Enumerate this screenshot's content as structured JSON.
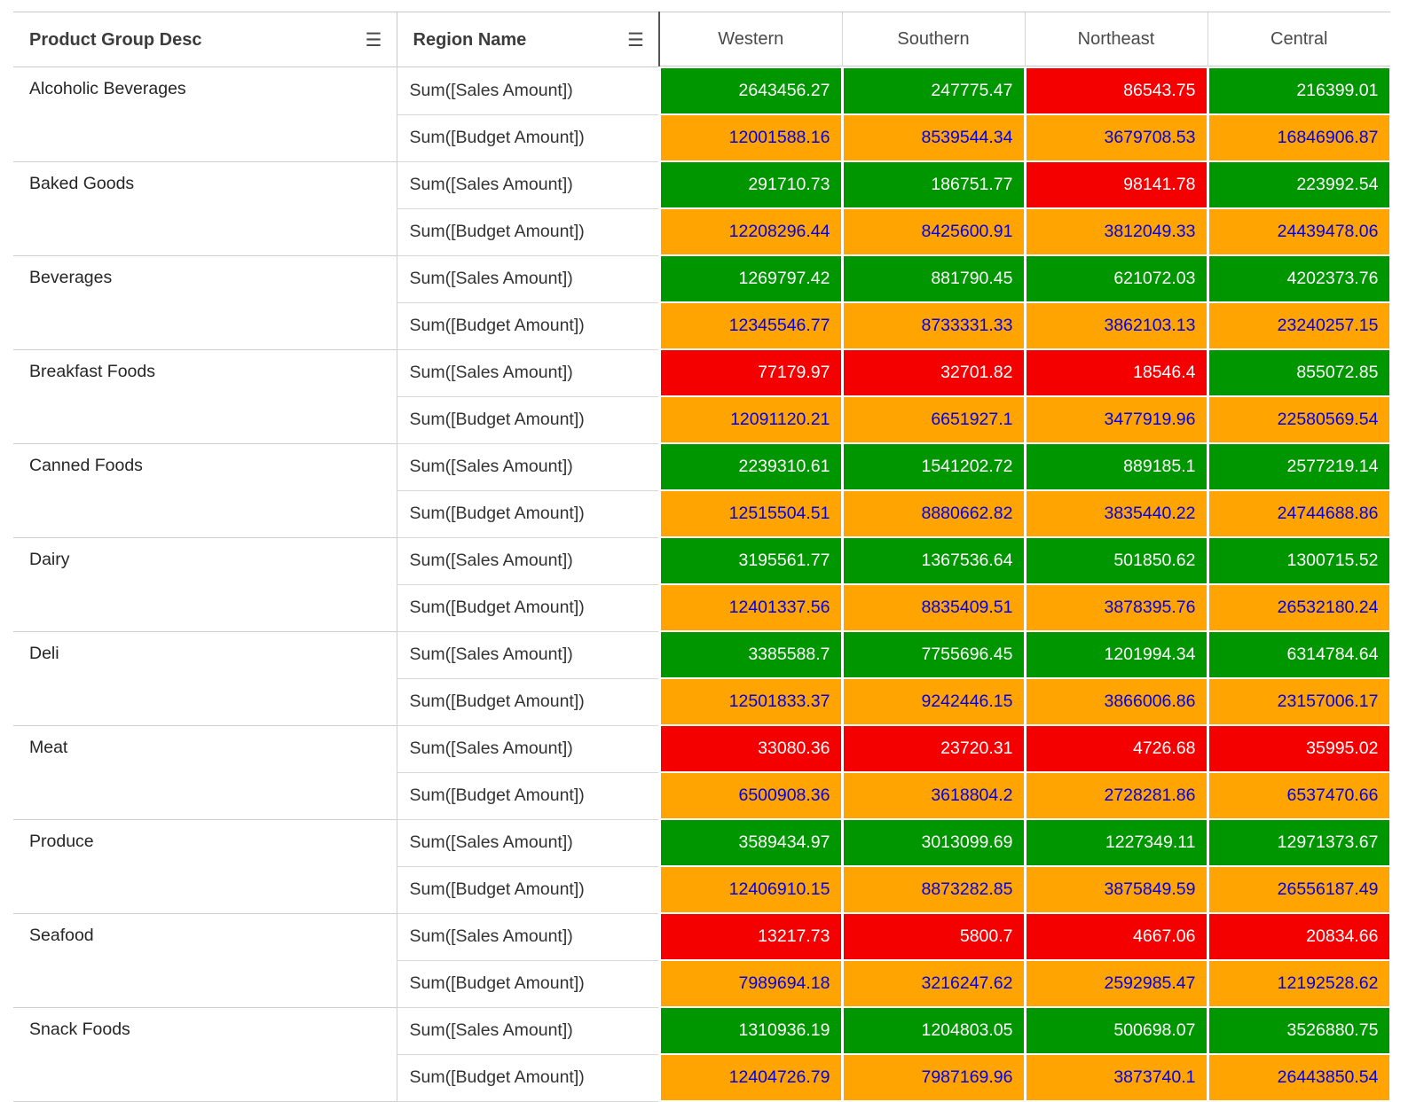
{
  "icons": {
    "menu_glyph": "☰"
  },
  "chart_data": {
    "type": "table",
    "row_axis_label": "Product Group Desc",
    "column_axis_label": "Region Name",
    "columns": [
      "Western",
      "Southern",
      "Northeast",
      "Central"
    ],
    "measures": [
      "Sum([Sales Amount])",
      "Sum([Budget Amount])"
    ],
    "colors": {
      "sales_above": "#009600",
      "sales_below": "#f40000",
      "budget_bg": "#ffa400",
      "budget_text": "#0000ee",
      "sales_text": "#ffffff"
    },
    "groups": [
      {
        "name": "Alcoholic Beverages",
        "sales": [
          "2643456.27",
          "247775.47",
          "86543.75",
          "216399.01"
        ],
        "sales_status": [
          "green",
          "green",
          "red",
          "green"
        ],
        "budget": [
          "12001588.16",
          "8539544.34",
          "3679708.53",
          "16846906.87"
        ]
      },
      {
        "name": "Baked Goods",
        "sales": [
          "291710.73",
          "186751.77",
          "98141.78",
          "223992.54"
        ],
        "sales_status": [
          "green",
          "green",
          "red",
          "green"
        ],
        "budget": [
          "12208296.44",
          "8425600.91",
          "3812049.33",
          "24439478.06"
        ]
      },
      {
        "name": "Beverages",
        "sales": [
          "1269797.42",
          "881790.45",
          "621072.03",
          "4202373.76"
        ],
        "sales_status": [
          "green",
          "green",
          "green",
          "green"
        ],
        "budget": [
          "12345546.77",
          "8733331.33",
          "3862103.13",
          "23240257.15"
        ]
      },
      {
        "name": "Breakfast Foods",
        "sales": [
          "77179.97",
          "32701.82",
          "18546.4",
          "855072.85"
        ],
        "sales_status": [
          "red",
          "red",
          "red",
          "green"
        ],
        "budget": [
          "12091120.21",
          "6651927.1",
          "3477919.96",
          "22580569.54"
        ]
      },
      {
        "name": "Canned Foods",
        "sales": [
          "2239310.61",
          "1541202.72",
          "889185.1",
          "2577219.14"
        ],
        "sales_status": [
          "green",
          "green",
          "green",
          "green"
        ],
        "budget": [
          "12515504.51",
          "8880662.82",
          "3835440.22",
          "24744688.86"
        ]
      },
      {
        "name": "Dairy",
        "sales": [
          "3195561.77",
          "1367536.64",
          "501850.62",
          "1300715.52"
        ],
        "sales_status": [
          "green",
          "green",
          "green",
          "green"
        ],
        "budget": [
          "12401337.56",
          "8835409.51",
          "3878395.76",
          "26532180.24"
        ]
      },
      {
        "name": "Deli",
        "sales": [
          "3385588.7",
          "7755696.45",
          "1201994.34",
          "6314784.64"
        ],
        "sales_status": [
          "green",
          "green",
          "green",
          "green"
        ],
        "budget": [
          "12501833.37",
          "9242446.15",
          "3866006.86",
          "23157006.17"
        ]
      },
      {
        "name": "Meat",
        "sales": [
          "33080.36",
          "23720.31",
          "4726.68",
          "35995.02"
        ],
        "sales_status": [
          "red",
          "red",
          "red",
          "red"
        ],
        "budget": [
          "6500908.36",
          "3618804.2",
          "2728281.86",
          "6537470.66"
        ]
      },
      {
        "name": "Produce",
        "sales": [
          "3589434.97",
          "3013099.69",
          "1227349.11",
          "12971373.67"
        ],
        "sales_status": [
          "green",
          "green",
          "green",
          "green"
        ],
        "budget": [
          "12406910.15",
          "8873282.85",
          "3875849.59",
          "26556187.49"
        ]
      },
      {
        "name": "Seafood",
        "sales": [
          "13217.73",
          "5800.7",
          "4667.06",
          "20834.66"
        ],
        "sales_status": [
          "red",
          "red",
          "red",
          "red"
        ],
        "budget": [
          "7989694.18",
          "3216247.62",
          "2592985.47",
          "12192528.62"
        ]
      },
      {
        "name": "Snack Foods",
        "sales": [
          "1310936.19",
          "1204803.05",
          "500698.07",
          "3526880.75"
        ],
        "sales_status": [
          "green",
          "green",
          "green",
          "green"
        ],
        "budget": [
          "12404726.79",
          "7987169.96",
          "3873740.1",
          "26443850.54"
        ]
      }
    ]
  }
}
